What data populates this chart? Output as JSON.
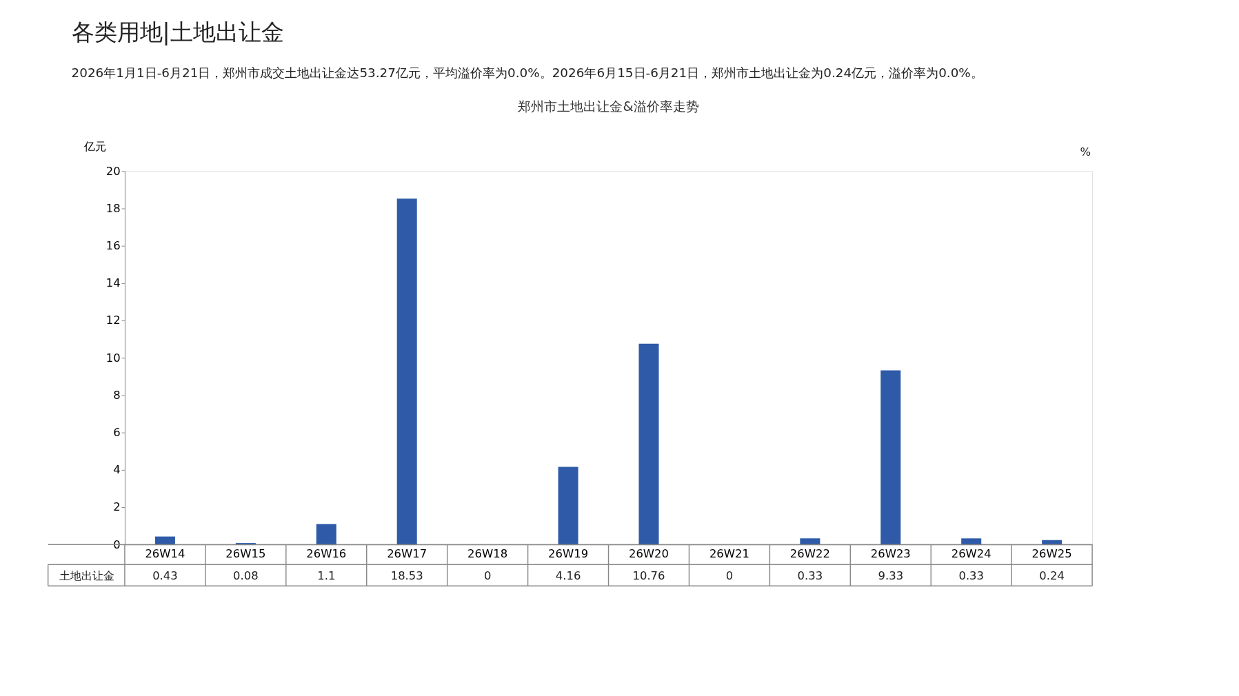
{
  "chart_data": {
    "type": "bar",
    "annotations": [
      "各类用地|土地出让金",
      "2026年1月1日-6月21日，郑州市成交土地出让金达53.27亿元，平均溢价率为0.0%。2026年6月15日-6月21日，郑州市土地出让金为0.24亿元，溢价率为0.0%。"
    ],
    "title": "郑州市土地出让金&溢价率走势",
    "ylabel": "亿元",
    "y2label": "%",
    "categories": [
      "26W14",
      "26W15",
      "26W16",
      "26W17",
      "26W18",
      "26W19",
      "26W20",
      "26W21",
      "26W22",
      "26W23",
      "26W24",
      "26W25"
    ],
    "series": [
      {
        "name": "土地出让金",
        "color": "#2e5aa8",
        "values": [
          0.43,
          0.08,
          1.1,
          18.53,
          0,
          4.16,
          10.76,
          0,
          0.33,
          9.33,
          0.33,
          0.24
        ]
      }
    ],
    "ylim": [
      0,
      20
    ],
    "yticks": [
      0,
      2,
      4,
      6,
      8,
      10,
      12,
      14,
      16,
      18,
      20
    ],
    "data_labels": true,
    "grid": false
  }
}
